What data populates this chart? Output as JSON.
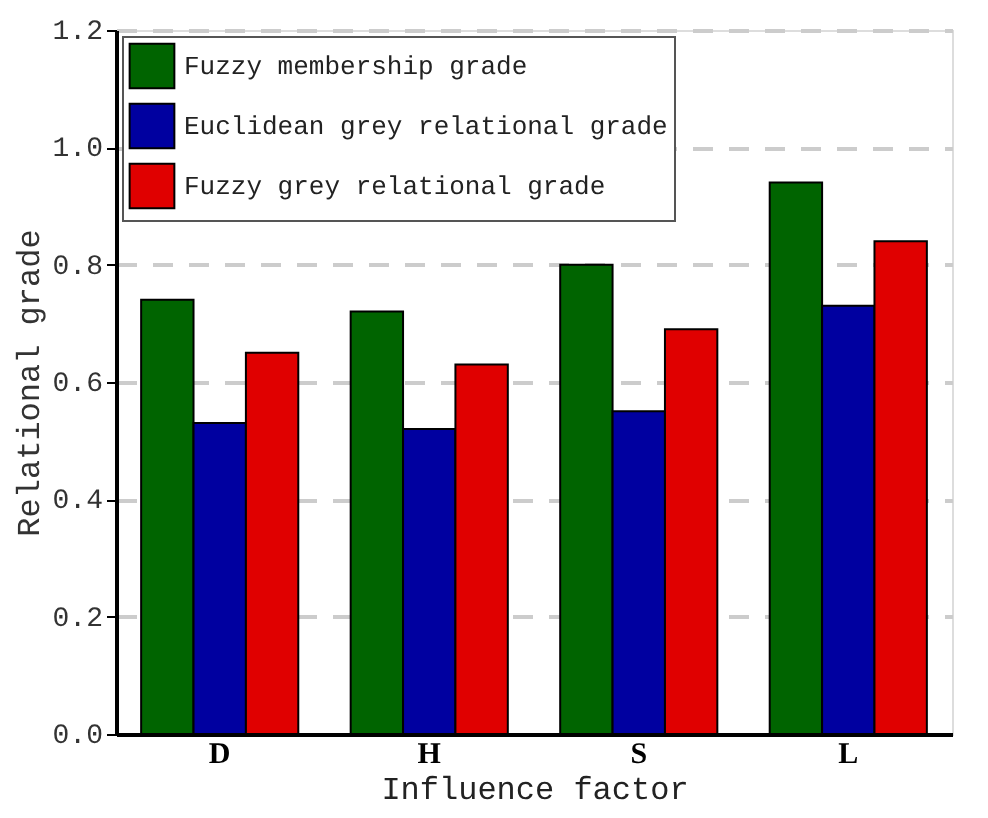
{
  "chart_data": {
    "type": "bar",
    "xlabel": "Influence factor",
    "ylabel": "Relational grade",
    "categories": [
      "D",
      "H",
      "S",
      "L"
    ],
    "series": [
      {
        "name": "Fuzzy membership grade",
        "color": "#006400",
        "values": [
          0.74,
          0.72,
          0.8,
          0.94
        ]
      },
      {
        "name": "Euclidean grey relational grade",
        "color": "#0000a0",
        "values": [
          0.53,
          0.52,
          0.55,
          0.73
        ]
      },
      {
        "name": "Fuzzy grey relational grade",
        "color": "#e00000",
        "values": [
          0.65,
          0.63,
          0.69,
          0.84
        ]
      }
    ],
    "ylim": [
      0,
      1.2
    ],
    "yticks": [
      {
        "value": 0,
        "label": "0.0"
      },
      0.2,
      0.4,
      0.6,
      0.8,
      {
        "value": 1,
        "label": "1.0"
      },
      1.2
    ],
    "grid": "y",
    "legend": "top left"
  }
}
